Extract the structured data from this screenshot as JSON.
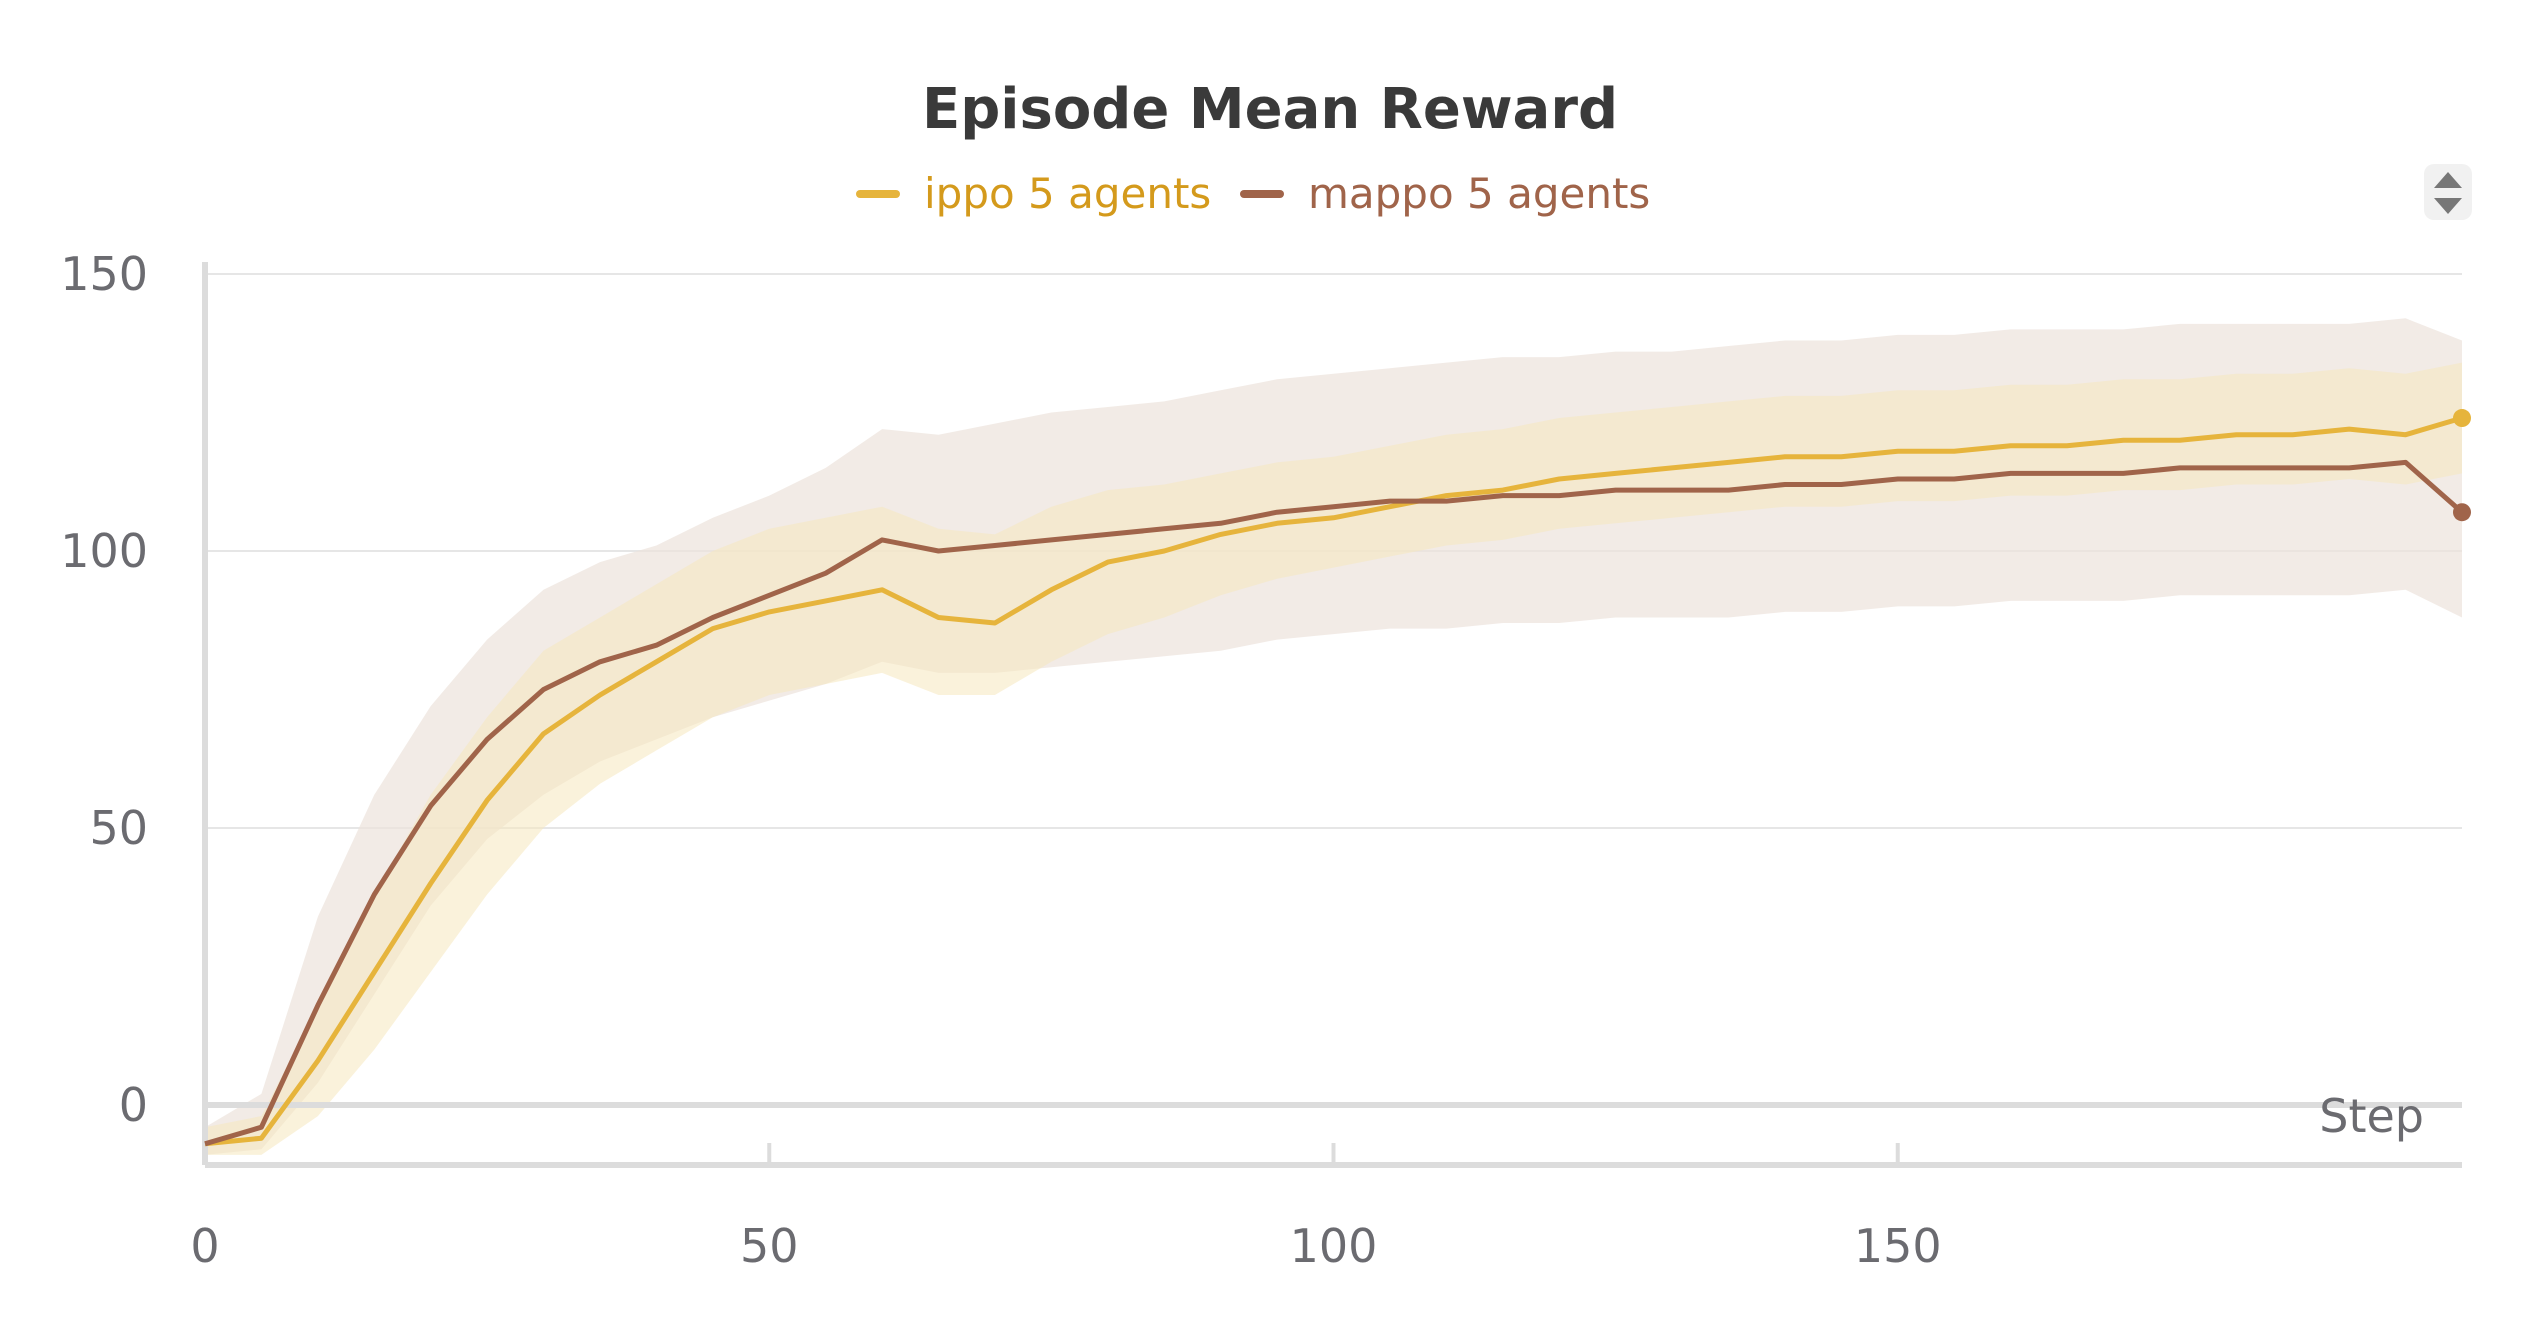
{
  "chart_data": {
    "type": "line",
    "title": "Episode Mean Reward",
    "xlabel": "Step",
    "ylabel": "",
    "xlim": [
      0,
      200
    ],
    "ylim": [
      -10,
      150
    ],
    "xticks": [
      0,
      50,
      100,
      150
    ],
    "yticks": [
      0,
      50,
      100,
      150
    ],
    "grid": true,
    "legend_position": "top-center",
    "series": [
      {
        "name": "ippo 5 agents",
        "color": "#e6b43c",
        "band_color": "#f6e7bd",
        "x": [
          0,
          5,
          10,
          15,
          20,
          25,
          30,
          35,
          40,
          45,
          50,
          55,
          60,
          65,
          70,
          75,
          80,
          85,
          90,
          95,
          100,
          105,
          110,
          115,
          120,
          125,
          130,
          135,
          140,
          145,
          150,
          155,
          160,
          165,
          170,
          175,
          180,
          185,
          190,
          195,
          200
        ],
        "values": [
          -7,
          -6,
          8,
          24,
          40,
          55,
          67,
          74,
          80,
          86,
          89,
          91,
          93,
          88,
          87,
          93,
          98,
          100,
          103,
          105,
          106,
          108,
          110,
          111,
          113,
          114,
          115,
          116,
          117,
          117,
          118,
          118,
          119,
          119,
          120,
          120,
          121,
          121,
          122,
          121,
          124
        ],
        "band_lower": [
          -9,
          -9,
          -2,
          10,
          24,
          38,
          50,
          58,
          64,
          70,
          74,
          76,
          78,
          74,
          74,
          80,
          85,
          88,
          92,
          95,
          97,
          99,
          101,
          102,
          104,
          105,
          106,
          107,
          108,
          108,
          109,
          109,
          110,
          110,
          111,
          111,
          112,
          112,
          113,
          112,
          114
        ],
        "band_upper": [
          -4,
          -2,
          18,
          38,
          56,
          70,
          82,
          88,
          94,
          100,
          104,
          106,
          108,
          104,
          103,
          108,
          111,
          112,
          114,
          116,
          117,
          119,
          121,
          122,
          124,
          125,
          126,
          127,
          128,
          128,
          129,
          129,
          130,
          130,
          131,
          131,
          132,
          132,
          133,
          132,
          134
        ]
      },
      {
        "name": "mappo 5 agents",
        "color": "#a0644a",
        "band_color": "#ece3dc",
        "x": [
          0,
          5,
          10,
          15,
          20,
          25,
          30,
          35,
          40,
          45,
          50,
          55,
          60,
          65,
          70,
          75,
          80,
          85,
          90,
          95,
          100,
          105,
          110,
          115,
          120,
          125,
          130,
          135,
          140,
          145,
          150,
          155,
          160,
          165,
          170,
          175,
          180,
          185,
          190,
          195,
          200
        ],
        "values": [
          -7,
          -4,
          18,
          38,
          54,
          66,
          75,
          80,
          83,
          88,
          92,
          96,
          102,
          100,
          101,
          102,
          103,
          104,
          105,
          107,
          108,
          109,
          109,
          110,
          110,
          111,
          111,
          111,
          112,
          112,
          113,
          113,
          114,
          114,
          114,
          115,
          115,
          115,
          115,
          116,
          107
        ],
        "band_lower": [
          -9,
          -8,
          4,
          20,
          36,
          48,
          56,
          62,
          66,
          70,
          73,
          76,
          80,
          78,
          78,
          79,
          80,
          81,
          82,
          84,
          85,
          86,
          86,
          87,
          87,
          88,
          88,
          88,
          89,
          89,
          90,
          90,
          91,
          91,
          91,
          92,
          92,
          92,
          92,
          93,
          88
        ],
        "band_upper": [
          -4,
          2,
          34,
          56,
          72,
          84,
          93,
          98,
          101,
          106,
          110,
          115,
          122,
          121,
          123,
          125,
          126,
          127,
          129,
          131,
          132,
          133,
          134,
          135,
          135,
          136,
          136,
          137,
          138,
          138,
          139,
          139,
          140,
          140,
          140,
          141,
          141,
          141,
          141,
          142,
          138
        ]
      }
    ]
  },
  "icons": {
    "scroll": "sort-arrows-icon"
  }
}
